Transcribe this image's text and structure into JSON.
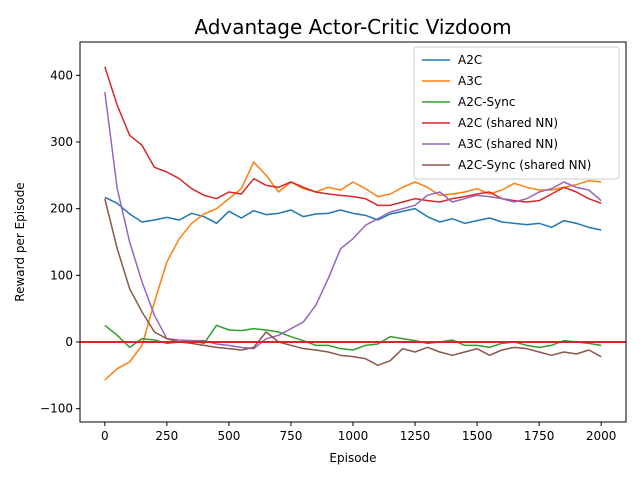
{
  "chart_data": {
    "type": "line",
    "title": "Advantage Actor-Critic Vizdoom",
    "xlabel": "Episode",
    "ylabel": "Reward per Episode",
    "xlim": [
      -100,
      2100
    ],
    "ylim": [
      -120,
      450
    ],
    "x_ticks": [
      0,
      250,
      500,
      750,
      1000,
      1250,
      1500,
      1750,
      2000
    ],
    "y_ticks": [
      -100,
      0,
      100,
      200,
      300,
      400
    ],
    "legend_position": "top-right",
    "grid": false,
    "reference_line": {
      "y": 0,
      "color": "#d62728"
    },
    "series": [
      {
        "name": "A2C",
        "color": "#1f77b4",
        "x": [
          0,
          50,
          100,
          150,
          200,
          250,
          300,
          350,
          400,
          450,
          500,
          550,
          600,
          650,
          700,
          750,
          800,
          850,
          900,
          950,
          1000,
          1050,
          1100,
          1150,
          1200,
          1250,
          1300,
          1350,
          1400,
          1450,
          1500,
          1550,
          1600,
          1650,
          1700,
          1750,
          1800,
          1850,
          1900,
          1950,
          2000
        ],
        "y": [
          217,
          208,
          192,
          180,
          183,
          187,
          183,
          193,
          188,
          178,
          196,
          186,
          197,
          191,
          193,
          198,
          188,
          192,
          193,
          198,
          193,
          190,
          183,
          192,
          196,
          200,
          188,
          180,
          185,
          178,
          182,
          186,
          180,
          178,
          176,
          178,
          172,
          182,
          178,
          172,
          168
        ]
      },
      {
        "name": "A3C",
        "color": "#ff7f0e",
        "x": [
          0,
          50,
          100,
          150,
          200,
          250,
          300,
          350,
          400,
          450,
          500,
          550,
          600,
          650,
          700,
          750,
          800,
          850,
          900,
          950,
          1000,
          1050,
          1100,
          1150,
          1200,
          1250,
          1300,
          1350,
          1400,
          1450,
          1500,
          1550,
          1600,
          1650,
          1700,
          1750,
          1800,
          1850,
          1900,
          1950,
          2000
        ],
        "y": [
          -57,
          -40,
          -30,
          -5,
          60,
          120,
          155,
          178,
          192,
          200,
          215,
          230,
          270,
          250,
          225,
          240,
          230,
          225,
          232,
          228,
          240,
          230,
          218,
          222,
          232,
          240,
          232,
          220,
          222,
          225,
          230,
          222,
          228,
          238,
          232,
          228,
          228,
          232,
          236,
          242,
          240
        ]
      },
      {
        "name": "A2C-Sync",
        "color": "#2ca02c",
        "x": [
          0,
          50,
          100,
          150,
          200,
          250,
          300,
          350,
          400,
          450,
          500,
          550,
          600,
          650,
          700,
          750,
          800,
          850,
          900,
          950,
          1000,
          1050,
          1100,
          1150,
          1200,
          1250,
          1300,
          1350,
          1400,
          1450,
          1500,
          1550,
          1600,
          1650,
          1700,
          1750,
          1800,
          1850,
          1900,
          1950,
          2000
        ],
        "y": [
          25,
          10,
          -8,
          5,
          3,
          -2,
          0,
          2,
          -2,
          25,
          18,
          17,
          20,
          18,
          15,
          8,
          2,
          -5,
          -5,
          -10,
          -12,
          -5,
          -3,
          8,
          5,
          2,
          -2,
          0,
          3,
          -5,
          -5,
          -8,
          -2,
          0,
          -5,
          -8,
          -5,
          2,
          0,
          -2,
          -5
        ]
      },
      {
        "name": "A2C (shared NN)",
        "color": "#d62728",
        "x": [
          0,
          50,
          100,
          150,
          200,
          250,
          300,
          350,
          400,
          450,
          500,
          550,
          600,
          650,
          700,
          750,
          800,
          850,
          900,
          950,
          1000,
          1050,
          1100,
          1150,
          1200,
          1250,
          1300,
          1350,
          1400,
          1450,
          1500,
          1550,
          1600,
          1650,
          1700,
          1750,
          1800,
          1850,
          1900,
          1950,
          2000
        ],
        "y": [
          413,
          355,
          310,
          295,
          262,
          255,
          245,
          230,
          220,
          215,
          225,
          222,
          245,
          235,
          232,
          240,
          232,
          225,
          222,
          220,
          218,
          215,
          205,
          205,
          210,
          215,
          212,
          210,
          215,
          218,
          222,
          225,
          215,
          212,
          210,
          212,
          222,
          232,
          225,
          215,
          208
        ]
      },
      {
        "name": "A3C (shared NN)",
        "color": "#9467bd",
        "x": [
          0,
          50,
          100,
          150,
          200,
          250,
          300,
          350,
          400,
          450,
          500,
          550,
          600,
          650,
          700,
          750,
          800,
          850,
          900,
          950,
          1000,
          1050,
          1100,
          1150,
          1200,
          1250,
          1300,
          1350,
          1400,
          1450,
          1500,
          1550,
          1600,
          1650,
          1700,
          1750,
          1800,
          1850,
          1900,
          1950,
          2000
        ],
        "y": [
          375,
          230,
          150,
          90,
          40,
          5,
          3,
          2,
          2,
          -3,
          -5,
          -8,
          -10,
          5,
          10,
          20,
          30,
          55,
          95,
          140,
          155,
          175,
          185,
          195,
          200,
          205,
          220,
          225,
          210,
          215,
          220,
          218,
          215,
          210,
          215,
          225,
          230,
          240,
          232,
          228,
          212
        ]
      },
      {
        "name": "A2C-Sync (shared NN)",
        "color": "#8c564b",
        "x": [
          0,
          50,
          100,
          150,
          200,
          250,
          300,
          350,
          400,
          450,
          500,
          550,
          600,
          650,
          700,
          750,
          800,
          850,
          900,
          950,
          1000,
          1050,
          1100,
          1150,
          1200,
          1250,
          1300,
          1350,
          1400,
          1450,
          1500,
          1550,
          1600,
          1650,
          1700,
          1750,
          1800,
          1850,
          1900,
          1950,
          2000
        ],
        "y": [
          215,
          140,
          80,
          45,
          15,
          5,
          0,
          -2,
          -5,
          -8,
          -10,
          -12,
          -8,
          15,
          0,
          -5,
          -10,
          -12,
          -15,
          -20,
          -22,
          -25,
          -35,
          -28,
          -10,
          -15,
          -8,
          -15,
          -20,
          -15,
          -10,
          -20,
          -12,
          -8,
          -10,
          -15,
          -20,
          -15,
          -18,
          -12,
          -22
        ]
      }
    ]
  }
}
